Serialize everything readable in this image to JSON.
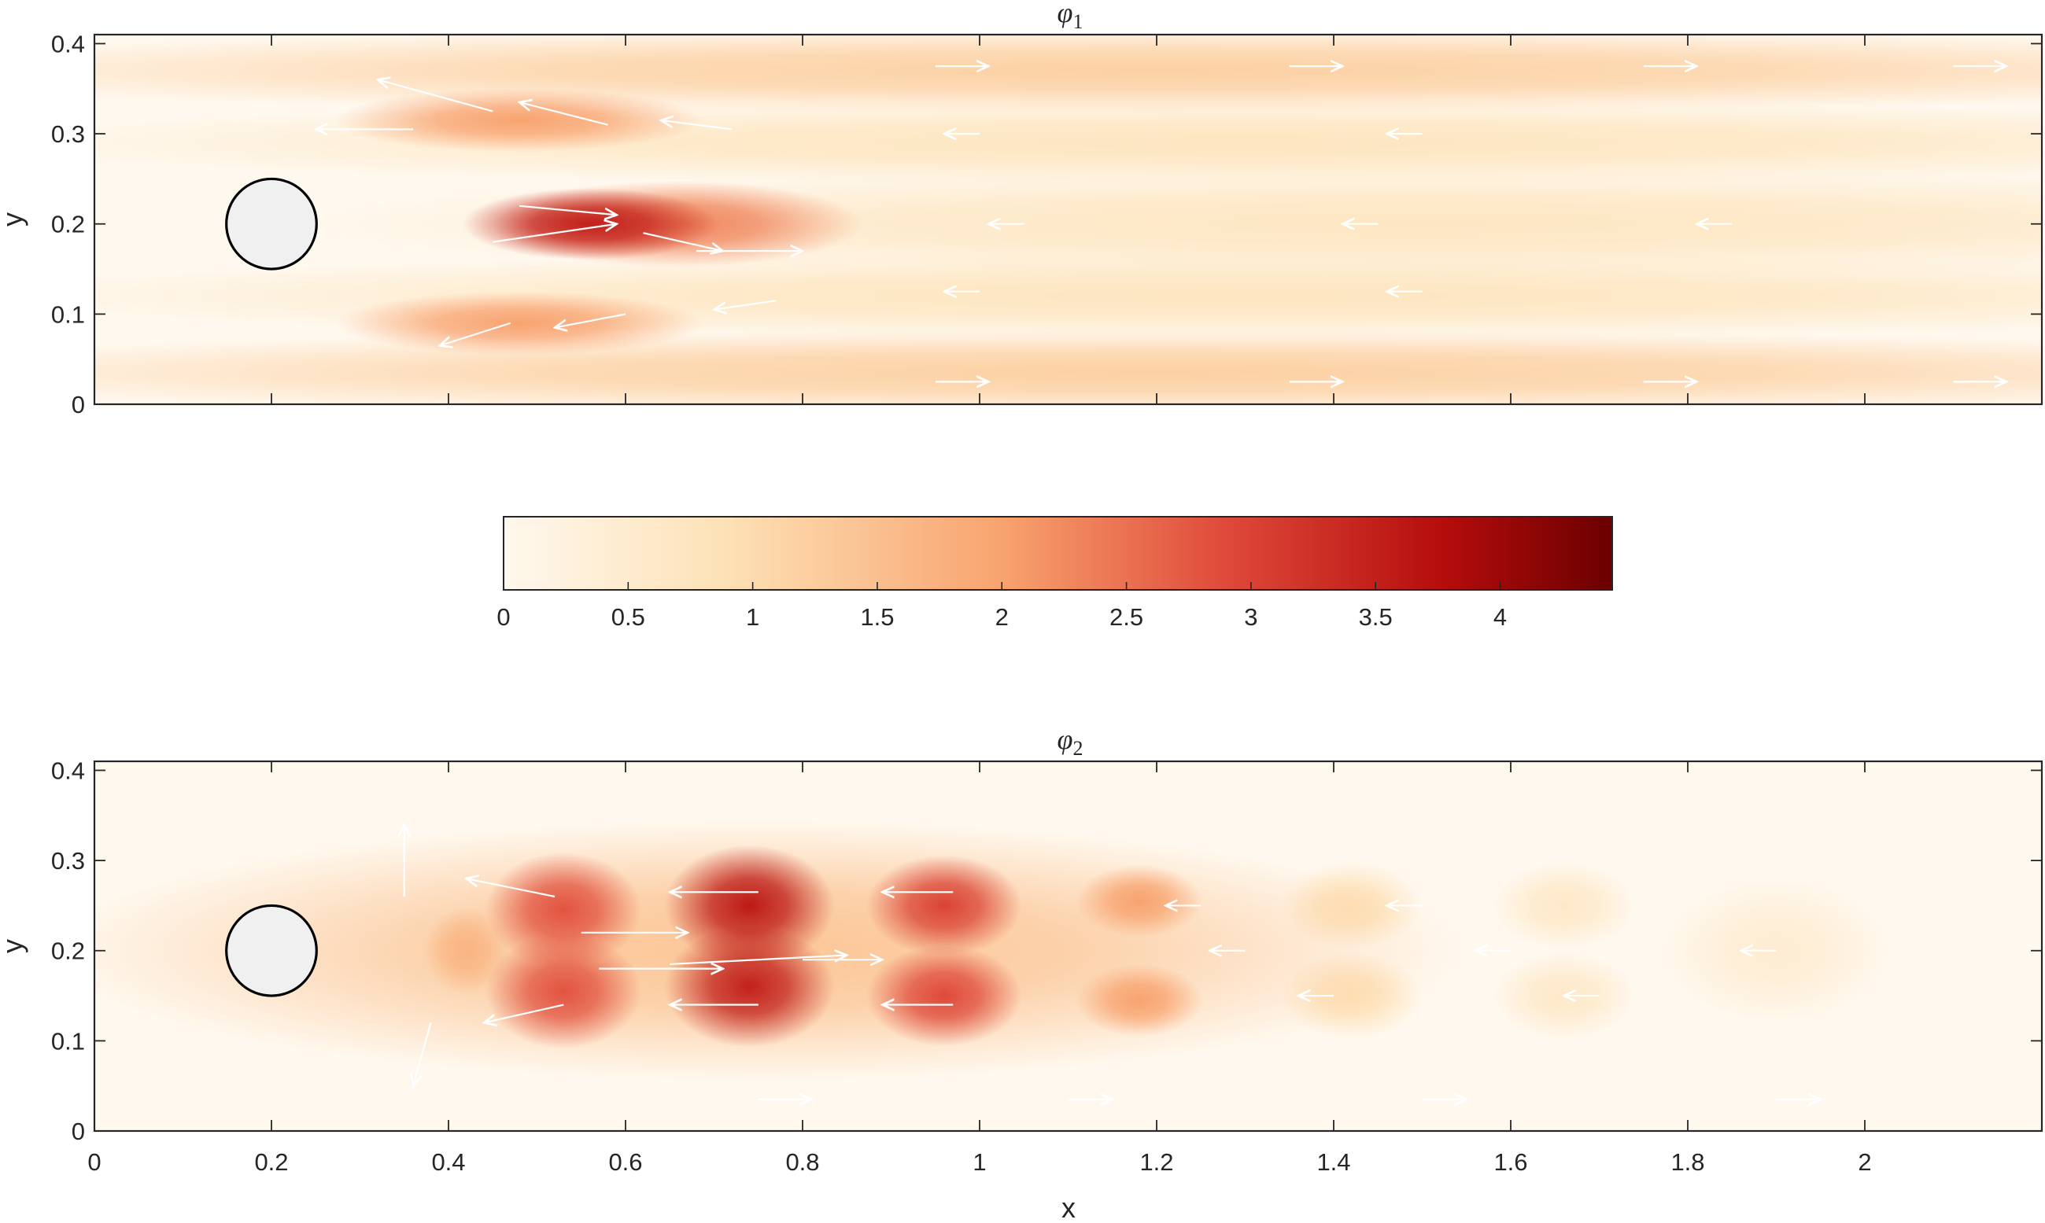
{
  "chart_data": [
    {
      "type": "heatmap",
      "title": "φ",
      "title_subscript": "1",
      "xlabel": "",
      "ylabel": "y",
      "xlim": [
        0,
        2.2
      ],
      "ylim": [
        0,
        0.41
      ],
      "xticks": [],
      "yticks": [
        "0",
        "0.1",
        "0.2",
        "0.3",
        "0.4"
      ],
      "ytick_values": [
        0,
        0.1,
        0.2,
        0.3,
        0.4
      ],
      "xtick_positions": [
        0,
        0.2,
        0.4,
        0.6,
        0.8,
        1.0,
        1.2,
        1.4,
        1.6,
        1.8,
        2.0
      ],
      "obstacle": {
        "shape": "circle",
        "center": [
          0.2,
          0.2
        ],
        "radius": 0.05
      },
      "intensity_blobs": [
        {
          "x": 0.56,
          "y": 0.2,
          "value": 3.5,
          "sx": 0.09,
          "sy": 0.025
        },
        {
          "x": 0.66,
          "y": 0.2,
          "value": 2.3,
          "sx": 0.13,
          "sy": 0.03
        },
        {
          "x": 0.48,
          "y": 0.315,
          "value": 2.0,
          "sx": 0.13,
          "sy": 0.022
        },
        {
          "x": 0.48,
          "y": 0.09,
          "value": 2.0,
          "sx": 0.13,
          "sy": 0.022
        },
        {
          "x": 1.2,
          "y": 0.37,
          "value": 1.2,
          "sx": 0.95,
          "sy": 0.03
        },
        {
          "x": 1.2,
          "y": 0.035,
          "value": 1.2,
          "sx": 0.95,
          "sy": 0.03
        },
        {
          "x": 1.3,
          "y": 0.29,
          "value": 0.75,
          "sx": 0.9,
          "sy": 0.03
        },
        {
          "x": 1.3,
          "y": 0.12,
          "value": 0.75,
          "sx": 0.9,
          "sy": 0.03
        },
        {
          "x": 1.5,
          "y": 0.2,
          "value": 0.7,
          "sx": 0.8,
          "sy": 0.04
        }
      ],
      "vector_field": [
        {
          "x": 0.45,
          "y": 0.325,
          "u": -0.13,
          "v": 0.035
        },
        {
          "x": 0.58,
          "y": 0.31,
          "u": -0.1,
          "v": 0.025
        },
        {
          "x": 0.72,
          "y": 0.305,
          "u": -0.08,
          "v": 0.01
        },
        {
          "x": 0.36,
          "y": 0.305,
          "u": -0.11,
          "v": 0.0
        },
        {
          "x": 0.48,
          "y": 0.22,
          "u": 0.11,
          "v": -0.01
        },
        {
          "x": 0.45,
          "y": 0.18,
          "u": 0.14,
          "v": 0.02
        },
        {
          "x": 0.62,
          "y": 0.19,
          "u": 0.09,
          "v": -0.02
        },
        {
          "x": 0.68,
          "y": 0.17,
          "u": 0.12,
          "v": 0.0
        },
        {
          "x": 0.47,
          "y": 0.09,
          "u": -0.08,
          "v": -0.025
        },
        {
          "x": 0.6,
          "y": 0.1,
          "u": -0.08,
          "v": -0.015
        },
        {
          "x": 0.77,
          "y": 0.115,
          "u": -0.07,
          "v": -0.01
        },
        {
          "x": 0.95,
          "y": 0.375,
          "u": 0.06,
          "v": 0.0
        },
        {
          "x": 1.35,
          "y": 0.375,
          "u": 0.06,
          "v": 0.0
        },
        {
          "x": 1.75,
          "y": 0.375,
          "u": 0.06,
          "v": 0.0
        },
        {
          "x": 2.1,
          "y": 0.375,
          "u": 0.06,
          "v": 0.0
        },
        {
          "x": 1.05,
          "y": 0.2,
          "u": -0.04,
          "v": 0.0
        },
        {
          "x": 1.45,
          "y": 0.2,
          "u": -0.04,
          "v": 0.0
        },
        {
          "x": 1.85,
          "y": 0.2,
          "u": -0.04,
          "v": 0.0
        },
        {
          "x": 1.0,
          "y": 0.3,
          "u": -0.04,
          "v": 0.0
        },
        {
          "x": 1.5,
          "y": 0.3,
          "u": -0.04,
          "v": 0.0
        },
        {
          "x": 1.0,
          "y": 0.125,
          "u": -0.04,
          "v": 0.0
        },
        {
          "x": 1.5,
          "y": 0.125,
          "u": -0.04,
          "v": 0.0
        },
        {
          "x": 0.95,
          "y": 0.025,
          "u": 0.06,
          "v": 0.0
        },
        {
          "x": 1.35,
          "y": 0.025,
          "u": 0.06,
          "v": 0.0
        },
        {
          "x": 1.75,
          "y": 0.025,
          "u": 0.06,
          "v": 0.0
        },
        {
          "x": 2.1,
          "y": 0.025,
          "u": 0.06,
          "v": 0.0
        }
      ]
    },
    {
      "type": "heatmap",
      "title": "φ",
      "title_subscript": "2",
      "xlabel": "x",
      "ylabel": "y",
      "xlim": [
        0,
        2.2
      ],
      "ylim": [
        0,
        0.41
      ],
      "xticks": [
        "0",
        "0.2",
        "0.4",
        "0.6",
        "0.8",
        "1",
        "1.2",
        "1.4",
        "1.6",
        "1.8",
        "2"
      ],
      "xtick_values": [
        0,
        0.2,
        0.4,
        0.6,
        0.8,
        1.0,
        1.2,
        1.4,
        1.6,
        1.8,
        2.0
      ],
      "yticks": [
        "0",
        "0.1",
        "0.2",
        "0.3",
        "0.4"
      ],
      "ytick_values": [
        0,
        0.1,
        0.2,
        0.3,
        0.4
      ],
      "obstacle": {
        "shape": "circle",
        "center": [
          0.2,
          0.2
        ],
        "radius": 0.05
      },
      "intensity_blobs": [
        {
          "x": 0.53,
          "y": 0.245,
          "value": 2.8,
          "sx": 0.055,
          "sy": 0.04
        },
        {
          "x": 0.53,
          "y": 0.155,
          "value": 2.8,
          "sx": 0.055,
          "sy": 0.04
        },
        {
          "x": 0.74,
          "y": 0.25,
          "value": 3.6,
          "sx": 0.06,
          "sy": 0.042
        },
        {
          "x": 0.74,
          "y": 0.16,
          "value": 3.5,
          "sx": 0.06,
          "sy": 0.042
        },
        {
          "x": 0.96,
          "y": 0.25,
          "value": 3.0,
          "sx": 0.055,
          "sy": 0.035
        },
        {
          "x": 0.96,
          "y": 0.15,
          "value": 2.9,
          "sx": 0.055,
          "sy": 0.035
        },
        {
          "x": 1.18,
          "y": 0.255,
          "value": 2.0,
          "sx": 0.045,
          "sy": 0.025
        },
        {
          "x": 1.18,
          "y": 0.145,
          "value": 2.0,
          "sx": 0.045,
          "sy": 0.025
        },
        {
          "x": 0.42,
          "y": 0.2,
          "value": 1.7,
          "sx": 0.03,
          "sy": 0.03
        },
        {
          "x": 1.42,
          "y": 0.25,
          "value": 0.9,
          "sx": 0.05,
          "sy": 0.03
        },
        {
          "x": 1.42,
          "y": 0.15,
          "value": 0.9,
          "sx": 0.05,
          "sy": 0.03
        },
        {
          "x": 1.66,
          "y": 0.25,
          "value": 0.6,
          "sx": 0.05,
          "sy": 0.03
        },
        {
          "x": 1.66,
          "y": 0.15,
          "value": 0.6,
          "sx": 0.05,
          "sy": 0.03
        },
        {
          "x": 1.9,
          "y": 0.2,
          "value": 0.45,
          "sx": 0.08,
          "sy": 0.05
        },
        {
          "x": 0.75,
          "y": 0.2,
          "value": 1.4,
          "sx": 0.5,
          "sy": 0.09
        }
      ],
      "vector_field": [
        {
          "x": 0.35,
          "y": 0.26,
          "u": 0.0,
          "v": 0.08
        },
        {
          "x": 0.38,
          "y": 0.12,
          "u": -0.02,
          "v": -0.07
        },
        {
          "x": 0.55,
          "y": 0.22,
          "u": 0.12,
          "v": 0.0
        },
        {
          "x": 0.57,
          "y": 0.18,
          "u": 0.14,
          "v": 0.0
        },
        {
          "x": 0.65,
          "y": 0.185,
          "u": 0.2,
          "v": 0.01
        },
        {
          "x": 0.8,
          "y": 0.19,
          "u": 0.09,
          "v": 0.0
        },
        {
          "x": 0.53,
          "y": 0.14,
          "u": -0.09,
          "v": -0.02
        },
        {
          "x": 0.75,
          "y": 0.14,
          "u": -0.1,
          "v": 0.0
        },
        {
          "x": 0.97,
          "y": 0.14,
          "u": -0.08,
          "v": 0.0
        },
        {
          "x": 0.52,
          "y": 0.26,
          "u": -0.1,
          "v": 0.02
        },
        {
          "x": 0.75,
          "y": 0.265,
          "u": -0.1,
          "v": 0.0
        },
        {
          "x": 0.97,
          "y": 0.265,
          "u": -0.08,
          "v": 0.0
        },
        {
          "x": 1.25,
          "y": 0.25,
          "u": -0.04,
          "v": 0.0
        },
        {
          "x": 1.5,
          "y": 0.25,
          "u": -0.04,
          "v": 0.0
        },
        {
          "x": 1.3,
          "y": 0.2,
          "u": -0.04,
          "v": 0.0
        },
        {
          "x": 1.6,
          "y": 0.2,
          "u": -0.04,
          "v": 0.0
        },
        {
          "x": 1.9,
          "y": 0.2,
          "u": -0.04,
          "v": 0.0
        },
        {
          "x": 0.75,
          "y": 0.035,
          "u": 0.06,
          "v": 0.0
        },
        {
          "x": 1.1,
          "y": 0.035,
          "u": 0.05,
          "v": 0.0
        },
        {
          "x": 1.5,
          "y": 0.035,
          "u": 0.05,
          "v": 0.0
        },
        {
          "x": 1.9,
          "y": 0.035,
          "u": 0.05,
          "v": 0.0
        },
        {
          "x": 1.4,
          "y": 0.15,
          "u": -0.04,
          "v": 0.0
        },
        {
          "x": 1.7,
          "y": 0.15,
          "u": -0.04,
          "v": 0.0
        }
      ]
    }
  ],
  "colorbar": {
    "min": 0,
    "max": 4.45,
    "ticks": [
      "0",
      "0.5",
      "1",
      "1.5",
      "2",
      "2.5",
      "3",
      "3.5",
      "4"
    ],
    "tick_values": [
      0,
      0.5,
      1,
      1.5,
      2,
      2.5,
      3,
      3.5,
      4
    ],
    "colors": [
      "#fff8ee",
      "#fde1b6",
      "#f8a36f",
      "#df4a3a",
      "#b40c0c",
      "#6b0000"
    ],
    "color_stops": [
      0,
      0.2,
      0.45,
      0.65,
      0.85,
      1.0
    ]
  },
  "style": {
    "arrow_color": "#ffffff",
    "obstacle_fill": "#f0f0f0",
    "axis_color": "#262626"
  }
}
